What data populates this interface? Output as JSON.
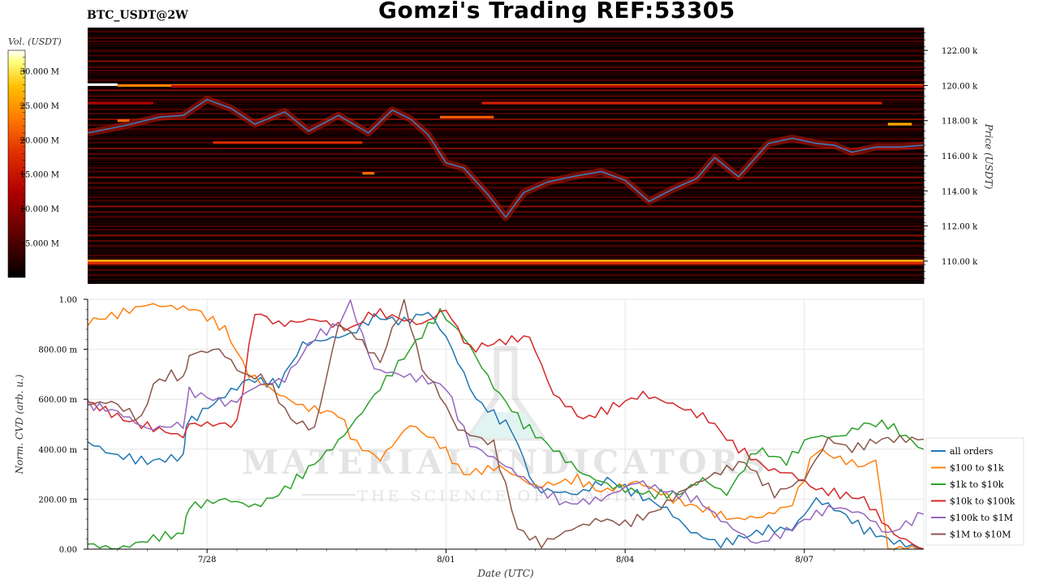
{
  "header": {
    "title": "Gomzi's Trading REF:53305",
    "symbol": "BTC_USDT@2W"
  },
  "chart_data": [
    {
      "type": "heatmap",
      "title": "BTC_USDT@2W",
      "ylabel": "Price (USDT)",
      "colorbar": {
        "label": "Vol. (USDT)",
        "ticks": [
          "30.000 M",
          "25.000 M",
          "20.000 M",
          "15.000 M",
          "10.000 M",
          "5.000 M"
        ],
        "range": [
          0,
          33000000
        ],
        "colors": [
          "#000000",
          "#5a0000",
          "#b20000",
          "#e03000",
          "#ff7a00",
          "#ffc000",
          "#ffff80",
          "#ffffff"
        ]
      },
      "y_ticks": [
        "122.00 k",
        "120.00 k",
        "118.00 k",
        "116.00 k",
        "114.00 k",
        "112.00 k",
        "110.00 k"
      ],
      "y_tick_values": [
        122000,
        120000,
        118000,
        116000,
        114000,
        112000,
        110000
      ],
      "ylim": [
        108700,
        123300
      ],
      "x_range_days": [
        0,
        14
      ],
      "price_series": {
        "name": "price",
        "color": "#3a7fc4",
        "x": [
          0,
          0.6,
          1.2,
          1.6,
          2.0,
          2.4,
          2.8,
          3.3,
          3.7,
          4.2,
          4.7,
          5.1,
          5.4,
          5.7,
          6.0,
          6.3,
          6.7,
          7.0,
          7.3,
          7.7,
          8.1,
          8.6,
          9.0,
          9.4,
          9.8,
          10.2,
          10.5,
          10.9,
          11.4,
          11.8,
          12.2,
          12.5,
          12.8,
          13.2,
          13.6,
          14.0
        ],
        "y": [
          117300,
          117700,
          118200,
          118300,
          119200,
          118700,
          117800,
          118500,
          117400,
          118300,
          117300,
          118600,
          118100,
          117200,
          115600,
          115300,
          113800,
          112500,
          113900,
          114500,
          114800,
          115100,
          114600,
          113400,
          114100,
          114700,
          115900,
          114800,
          116700,
          117000,
          116700,
          116600,
          116200,
          116500,
          116500,
          116600
        ]
      },
      "liquidity_levels": [
        {
          "price": 120050,
          "x0": 0.0,
          "x1": 0.5,
          "vol": 33000000
        },
        {
          "price": 120000,
          "x0": 0.5,
          "x1": 14.0,
          "vol": 19500000
        },
        {
          "price": 110000,
          "x0": 0.0,
          "x1": 14.0,
          "vol": 24000000
        },
        {
          "price": 119000,
          "x0": 6.6,
          "x1": 13.3,
          "vol": 12500000
        },
        {
          "price": 118200,
          "x0": 5.9,
          "x1": 6.8,
          "vol": 17000000
        },
        {
          "price": 117800,
          "x0": 13.4,
          "x1": 13.8,
          "vol": 22000000
        },
        {
          "price": 116750,
          "x0": 2.1,
          "x1": 4.6,
          "vol": 13500000
        },
        {
          "price": 115000,
          "x0": 4.6,
          "x1": 4.8,
          "vol": 18000000
        },
        {
          "price": 118000,
          "x0": 0.5,
          "x1": 0.7,
          "vol": 18000000
        },
        {
          "price": 119000,
          "x0": 0.0,
          "x1": 1.1,
          "vol": 9000000
        },
        {
          "price": 119950,
          "x0": 1.4,
          "x1": 14.0,
          "vol": 10000000
        },
        {
          "price": 109900,
          "x0": 0.0,
          "x1": 14.0,
          "vol": 14000000
        }
      ]
    },
    {
      "type": "line",
      "xlabel": "Date (UTC)",
      "ylabel": "Norm. CVD (arb. u.)",
      "ylim": [
        0,
        1
      ],
      "y_ticks": [
        "0.00",
        "200.00 m",
        "400.00 m",
        "600.00 m",
        "800.00 m",
        "1.00"
      ],
      "y_tick_values": [
        0,
        0.2,
        0.4,
        0.6,
        0.8,
        1.0
      ],
      "x_range_days": [
        0,
        14
      ],
      "x_ticks": [
        "7/28",
        "8/01",
        "8/04",
        "8/07"
      ],
      "x_tick_values": [
        2.0,
        6.0,
        9.0,
        12.0
      ],
      "grid": true,
      "legend_position": "bottom-right",
      "series": [
        {
          "name": "all orders",
          "color": "#1f77b4",
          "x": [
            0,
            0.4,
            1.0,
            1.6,
            1.65,
            2.2,
            2.7,
            3.2,
            3.6,
            4.4,
            4.8,
            5.3,
            5.7,
            6.0,
            6.5,
            7.1,
            7.5,
            8.2,
            8.7,
            9.2,
            9.7,
            10.1,
            10.6,
            11.0,
            11.4,
            11.8,
            12.2,
            12.6,
            13.0,
            13.5,
            14.0
          ],
          "y": [
            0.43,
            0.38,
            0.35,
            0.37,
            0.5,
            0.6,
            0.68,
            0.66,
            0.82,
            0.86,
            0.93,
            0.91,
            0.95,
            0.85,
            0.6,
            0.48,
            0.24,
            0.22,
            0.28,
            0.22,
            0.16,
            0.07,
            0.02,
            0.05,
            0.08,
            0.08,
            0.2,
            0.15,
            0.08,
            0.03,
            0.0
          ]
        },
        {
          "name": "$100 to $1k",
          "color": "#ff7f0e",
          "x": [
            0,
            0.5,
            1.0,
            1.8,
            2.3,
            2.7,
            3.2,
            3.6,
            4.2,
            4.5,
            4.9,
            5.4,
            5.9,
            6.3,
            6.9,
            7.5,
            8.2,
            8.6,
            9.2,
            9.8,
            10.3,
            10.8,
            11.3,
            11.8,
            12.2,
            12.6,
            13.0,
            13.2,
            13.4,
            14.0
          ],
          "y": [
            0.91,
            0.94,
            0.98,
            0.96,
            0.88,
            0.7,
            0.62,
            0.57,
            0.54,
            0.42,
            0.36,
            0.5,
            0.42,
            0.3,
            0.33,
            0.25,
            0.28,
            0.23,
            0.27,
            0.2,
            0.16,
            0.12,
            0.13,
            0.18,
            0.4,
            0.36,
            0.33,
            0.36,
            0.0,
            0.0
          ]
        },
        {
          "name": "$1k to $10k",
          "color": "#2ca02c",
          "x": [
            0,
            0.5,
            1.2,
            1.6,
            1.7,
            2.3,
            2.8,
            3.2,
            3.6,
            4.2,
            4.6,
            5.0,
            5.4,
            5.9,
            6.3,
            6.8,
            7.3,
            7.8,
            8.3,
            8.8,
            9.4,
            9.9,
            10.3,
            10.7,
            11.2,
            11.7,
            12.1,
            12.6,
            13.0,
            13.4,
            14.0
          ],
          "y": [
            0.02,
            0.0,
            0.05,
            0.06,
            0.17,
            0.2,
            0.17,
            0.22,
            0.3,
            0.43,
            0.55,
            0.68,
            0.8,
            0.95,
            0.85,
            0.65,
            0.5,
            0.4,
            0.3,
            0.25,
            0.22,
            0.22,
            0.28,
            0.22,
            0.4,
            0.35,
            0.45,
            0.45,
            0.5,
            0.5,
            0.4
          ]
        },
        {
          "name": "$10k to $100k",
          "color": "#d62728",
          "x": [
            0,
            0.6,
            1.6,
            1.7,
            2.5,
            2.8,
            3.2,
            3.8,
            4.4,
            4.8,
            5.6,
            6.0,
            6.4,
            6.9,
            7.4,
            7.8,
            8.3,
            8.7,
            9.3,
            9.8,
            10.4,
            10.8,
            11.4,
            11.8,
            12.2,
            12.6,
            13.0,
            13.5,
            14.0
          ],
          "y": [
            0.59,
            0.52,
            0.45,
            0.5,
            0.5,
            0.95,
            0.9,
            0.92,
            0.88,
            0.95,
            0.9,
            0.96,
            0.8,
            0.83,
            0.85,
            0.62,
            0.52,
            0.56,
            0.62,
            0.58,
            0.52,
            0.42,
            0.32,
            0.3,
            0.24,
            0.22,
            0.2,
            0.06,
            0.0
          ]
        },
        {
          "name": "$100k to $1M",
          "color": "#9467bd",
          "x": [
            0,
            0.5,
            1.0,
            1.6,
            1.7,
            2.4,
            2.8,
            3.3,
            3.8,
            4.2,
            4.4,
            4.8,
            5.2,
            5.6,
            6.0,
            6.4,
            6.9,
            7.5,
            8.0,
            8.6,
            9.2,
            9.7,
            10.2,
            10.7,
            11.2,
            11.7,
            12.1,
            12.5,
            13.0,
            13.4,
            14.0
          ],
          "y": [
            0.58,
            0.55,
            0.48,
            0.5,
            0.63,
            0.58,
            0.65,
            0.68,
            0.85,
            0.9,
            0.99,
            0.72,
            0.7,
            0.68,
            0.65,
            0.42,
            0.35,
            0.25,
            0.18,
            0.2,
            0.27,
            0.23,
            0.2,
            0.1,
            0.02,
            0.07,
            0.13,
            0.17,
            0.14,
            0.06,
            0.14
          ]
        },
        {
          "name": "$1M to $10M",
          "color": "#8c564b",
          "x": [
            0,
            0.4,
            0.9,
            1.1,
            1.4,
            1.6,
            1.7,
            2.2,
            2.6,
            3.0,
            3.4,
            3.8,
            4.2,
            4.5,
            4.9,
            5.3,
            5.6,
            5.8,
            6.2,
            6.8,
            7.2,
            7.6,
            8.1,
            8.6,
            9.0,
            9.5,
            10.0,
            10.5,
            11.0,
            11.5,
            12.0,
            12.4,
            12.8,
            13.3,
            14.0
          ],
          "y": [
            0.58,
            0.59,
            0.52,
            0.66,
            0.7,
            0.68,
            0.78,
            0.8,
            0.7,
            0.68,
            0.52,
            0.48,
            0.9,
            0.85,
            0.75,
            1.0,
            0.72,
            0.66,
            0.48,
            0.42,
            0.08,
            0.02,
            0.08,
            0.12,
            0.1,
            0.15,
            0.24,
            0.3,
            0.35,
            0.22,
            0.28,
            0.44,
            0.4,
            0.44,
            0.44
          ]
        }
      ]
    }
  ],
  "watermark": {
    "brand": "MATERIAL INDICATORS",
    "tagline": "THE SCIENCE OF TRADING"
  }
}
